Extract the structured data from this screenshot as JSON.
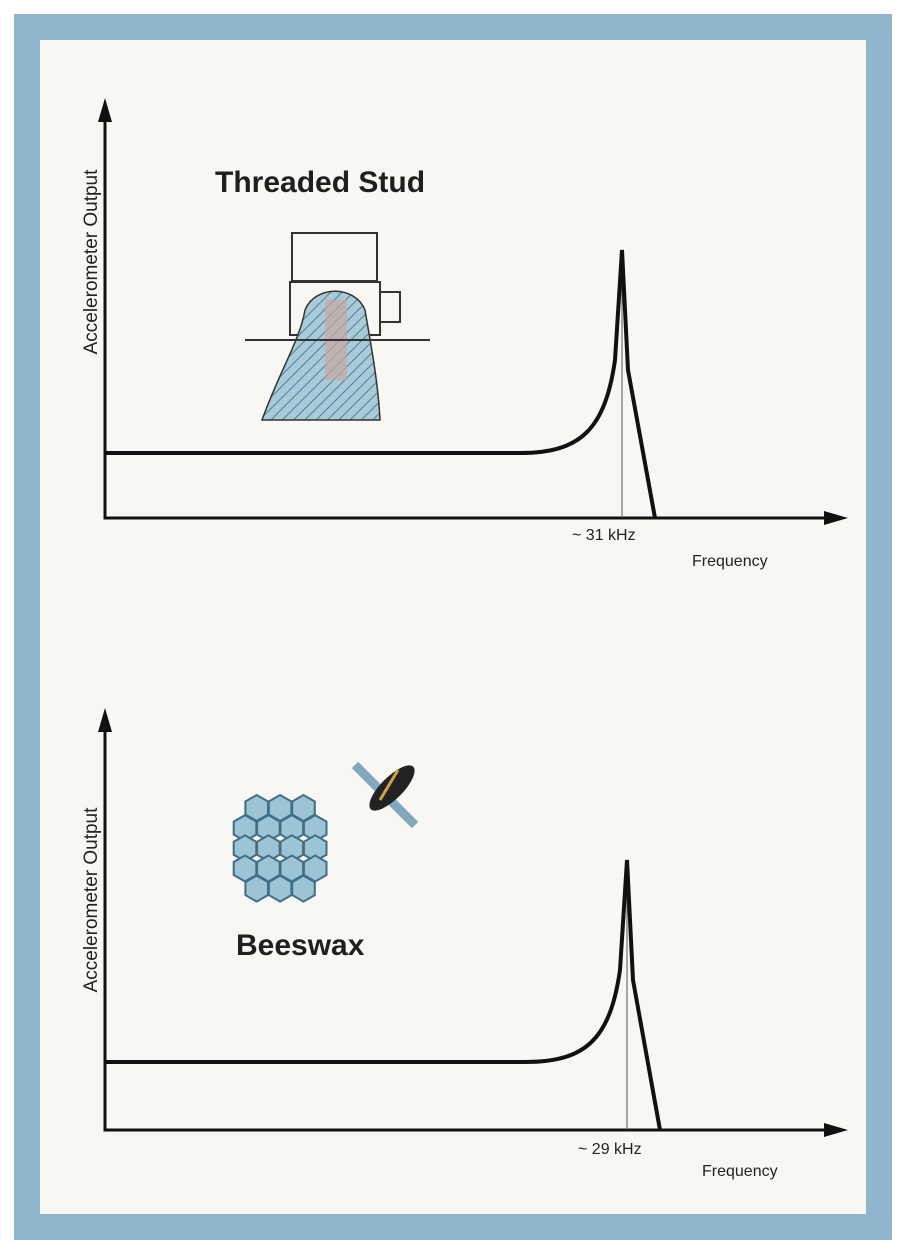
{
  "panels": [
    {
      "title": "Threaded Stud",
      "y_label": "Accelerometer Output",
      "peak_label": "~ 31 kHz",
      "x_label": "Frequency"
    },
    {
      "title": "Beeswax",
      "y_label": "Accelerometer Output",
      "peak_label": "~ 29 kHz",
      "x_label": "Frequency"
    }
  ]
}
